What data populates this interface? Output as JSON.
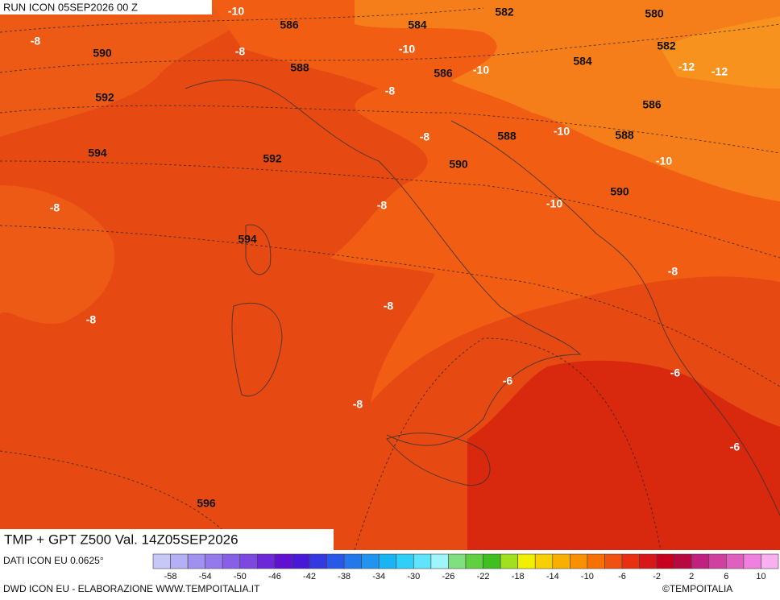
{
  "header": {
    "run": "RUN ICON 05SEP2026 00 Z"
  },
  "map": {
    "title": "TMP + GPT Z500 Val. 14Z05SEP2026",
    "geopotential_labels": [
      586,
      584,
      582,
      580,
      590,
      588,
      584,
      582,
      586,
      592,
      586,
      588,
      588,
      594,
      592,
      590,
      590,
      594,
      596
    ],
    "temperature_labels": [
      -10,
      -8,
      -8,
      -10,
      -10,
      -12,
      -12,
      -8,
      -8,
      -10,
      -10,
      -8,
      -8,
      -10,
      -8,
      -8,
      -8,
      -6,
      -6,
      -8,
      -6
    ]
  },
  "footer": {
    "source": "DATI ICON EU 0.0625°",
    "credit": "DWD ICON EU - ELABORAZIONE WWW.TEMPOITALIA.IT",
    "copyright": "©TEMPOITALIA"
  },
  "colorbar": {
    "ticks": [
      -58,
      -54,
      -50,
      -46,
      -42,
      -38,
      -34,
      -30,
      -26,
      -22,
      -18,
      -14,
      -10,
      -6,
      -2,
      2,
      6,
      10
    ],
    "colors": [
      "#c8c8f8",
      "#b4b0f4",
      "#a090f0",
      "#9478ec",
      "#8860e8",
      "#7c48e0",
      "#6c28d8",
      "#6010d0",
      "#4818d8",
      "#3438e0",
      "#2858e8",
      "#2478ec",
      "#2094f0",
      "#18b4f4",
      "#30cff8",
      "#60e4fc",
      "#a0f4fc",
      "#80e080",
      "#60d040",
      "#40c020",
      "#a0e020",
      "#f0f000",
      "#f8d000",
      "#f8b000",
      "#f89000",
      "#f87000",
      "#f05010",
      "#e83010",
      "#d81818",
      "#c80020",
      "#b80840",
      "#c02080",
      "#d040a0",
      "#e060c0",
      "#f080e0",
      "#f8b0f0"
    ]
  }
}
